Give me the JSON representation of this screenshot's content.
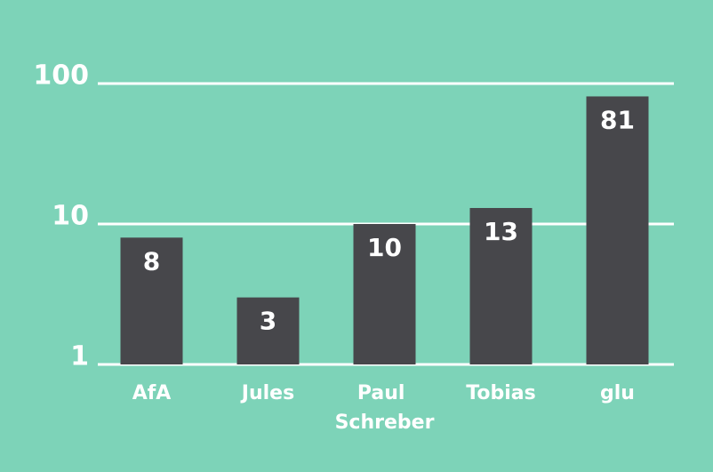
{
  "chart_data": {
    "type": "bar",
    "categories": [
      "AfA",
      "Jules",
      "Paul Schreber",
      "Tobias",
      "glu"
    ],
    "values": [
      8,
      3,
      10,
      13,
      81
    ],
    "color": "#47474b",
    "ylim": [
      1,
      100
    ],
    "yticks": [
      1,
      10,
      100
    ],
    "log_scale": true,
    "grid": true
  }
}
